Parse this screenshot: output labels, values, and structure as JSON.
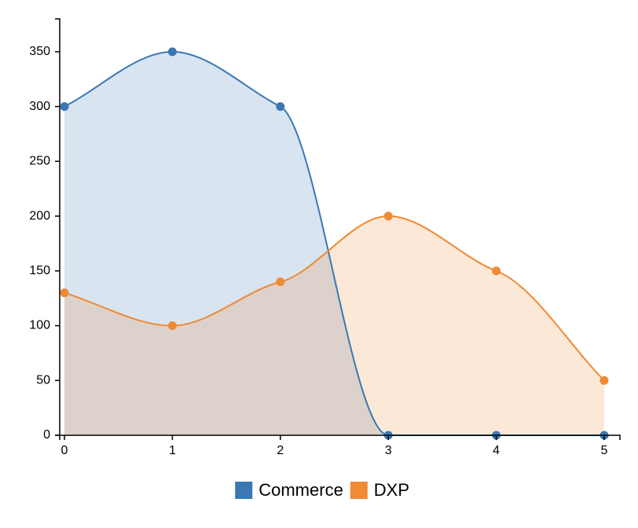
{
  "chart_data": {
    "type": "area",
    "x": [
      0,
      1,
      2,
      3,
      4,
      5
    ],
    "series": [
      {
        "name": "Commerce",
        "values": [
          300,
          350,
          300,
          0,
          0,
          0
        ],
        "color": "#3a78b3"
      },
      {
        "name": "DXP",
        "values": [
          130,
          100,
          140,
          200,
          150,
          50
        ],
        "color": "#ef8a35"
      }
    ],
    "xticks": [
      "0",
      "1",
      "2",
      "3",
      "4",
      "5"
    ],
    "yticks": [
      "0",
      "50",
      "100",
      "150",
      "200",
      "250",
      "300",
      "350"
    ],
    "ylim": [
      0,
      380
    ],
    "xlim": [
      0,
      5
    ],
    "grid": false,
    "legend_position": "bottom-center",
    "fill_opacity": 0.2
  }
}
